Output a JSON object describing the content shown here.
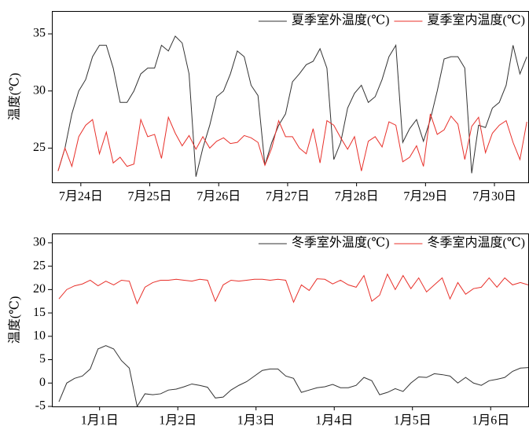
{
  "chart_data": [
    {
      "type": "line",
      "ylabel": "温度(℃)",
      "legend": "upper right",
      "x": [
        0.67,
        0.77,
        0.87,
        0.97,
        1.07,
        1.17,
        1.27,
        1.37,
        1.47,
        1.57,
        1.67,
        1.77,
        1.87,
        1.97,
        2.07,
        2.17,
        2.27,
        2.37,
        2.47,
        2.57,
        2.67,
        2.77,
        2.87,
        2.97,
        3.07,
        3.17,
        3.27,
        3.37,
        3.47,
        3.57,
        3.67,
        3.77,
        3.87,
        3.97,
        4.07,
        4.17,
        4.27,
        4.37,
        4.47,
        4.57,
        4.67,
        4.77,
        4.87,
        4.97,
        5.07,
        5.17,
        5.27,
        5.37,
        5.47,
        5.57,
        5.67,
        5.77,
        5.87,
        5.97,
        6.07,
        6.17,
        6.27,
        6.37,
        6.47,
        6.57,
        6.67,
        6.77,
        6.87,
        6.97,
        7.07,
        7.17,
        7.27,
        7.37,
        7.47
      ],
      "xlim": [
        0.58,
        7.49
      ],
      "xticks": [
        {
          "value": 1,
          "label": "7月24日"
        },
        {
          "value": 2,
          "label": "7月25日"
        },
        {
          "value": 3,
          "label": "7月26日"
        },
        {
          "value": 4,
          "label": "7月27日"
        },
        {
          "value": 5,
          "label": "7月28日"
        },
        {
          "value": 6,
          "label": "7月29日"
        },
        {
          "value": 7,
          "label": "7月30日"
        }
      ],
      "ylim": [
        22,
        37
      ],
      "yticks": [
        25,
        30,
        35
      ],
      "series": [
        {
          "name": "夏季室外温度(℃)",
          "color": "#333333",
          "values": [
            23,
            25,
            28,
            30,
            31,
            33,
            34,
            34,
            32,
            29,
            29,
            30,
            31.5,
            32,
            32,
            34,
            33.5,
            34.8,
            34.2,
            31.5,
            22.5,
            25,
            27,
            29.5,
            30,
            31.5,
            33.5,
            33,
            30.5,
            29.6,
            23.5,
            25.5,
            27,
            28,
            30.8,
            31.5,
            32.3,
            32.6,
            33.7,
            32,
            24,
            25.5,
            28.5,
            29.8,
            30.5,
            29,
            29.5,
            31,
            33,
            34,
            25.5,
            26.7,
            27.5,
            25.6,
            27.5,
            30,
            32.8,
            33,
            33,
            32,
            22.8,
            27,
            26.8,
            28.5,
            29,
            30.5,
            34,
            31.5,
            33
          ]
        },
        {
          "name": "夏季室内温度(℃)",
          "color": "#e8302a",
          "values": [
            23,
            25,
            23.4,
            26,
            27,
            27.5,
            24.5,
            26.4,
            23.7,
            24.2,
            23.4,
            23.6,
            27.5,
            26,
            26.2,
            24.1,
            27.7,
            26.3,
            25.2,
            26.1,
            24.9,
            26,
            25,
            25.6,
            25.9,
            25.4,
            25.5,
            26.1,
            25.9,
            25.5,
            23.5,
            25,
            27.4,
            26,
            26,
            25,
            24.5,
            26.7,
            23.7,
            27.4,
            27,
            25.9,
            24.9,
            26,
            23,
            25.6,
            26,
            25.1,
            27.3,
            27,
            23.8,
            24.2,
            25.2,
            23.4,
            28,
            26.2,
            26.6,
            27.8,
            27.1,
            24,
            26.9,
            27.7,
            24.6,
            26.3,
            27,
            27.4,
            25.5,
            24,
            27.3
          ]
        }
      ]
    },
    {
      "type": "line",
      "ylabel": "温度(℃)",
      "legend": "upper right",
      "x": [
        0.48,
        0.58,
        0.68,
        0.78,
        0.88,
        0.98,
        1.08,
        1.18,
        1.28,
        1.38,
        1.48,
        1.58,
        1.68,
        1.78,
        1.88,
        1.98,
        2.08,
        2.18,
        2.28,
        2.38,
        2.48,
        2.58,
        2.68,
        2.78,
        2.88,
        2.98,
        3.08,
        3.18,
        3.28,
        3.38,
        3.48,
        3.58,
        3.68,
        3.78,
        3.88,
        3.98,
        4.08,
        4.18,
        4.28,
        4.38,
        4.48,
        4.58,
        4.68,
        4.78,
        4.88,
        4.98,
        5.08,
        5.18,
        5.28,
        5.38,
        5.48,
        5.58,
        5.68,
        5.78,
        5.88,
        5.98,
        6.08,
        6.18,
        6.28,
        6.38,
        6.48
      ],
      "xlim": [
        0.39,
        6.48
      ],
      "xticks": [
        {
          "value": 1,
          "label": "1月1日"
        },
        {
          "value": 2,
          "label": "1月2日"
        },
        {
          "value": 3,
          "label": "1月3日"
        },
        {
          "value": 4,
          "label": "1月4日"
        },
        {
          "value": 5,
          "label": "1月5日"
        },
        {
          "value": 6,
          "label": "1月6日"
        }
      ],
      "ylim": [
        -5,
        32
      ],
      "yticks": [
        -5,
        0,
        5,
        10,
        15,
        20,
        25,
        30
      ],
      "series": [
        {
          "name": "冬季室外温度(℃)",
          "color": "#333333",
          "values": [
            -4,
            0,
            1,
            1.5,
            3,
            7.3,
            8,
            7.3,
            4.8,
            3.2,
            -5,
            -2.3,
            -2.5,
            -2.3,
            -1.5,
            -1.3,
            -0.8,
            -0.2,
            -0.5,
            -0.9,
            -3.2,
            -3,
            -1.5,
            -0.5,
            0.3,
            1.5,
            2.7,
            3,
            3,
            1.5,
            1,
            -2,
            -1.5,
            -1,
            -0.8,
            -0.3,
            -1,
            -1,
            -0.5,
            1.2,
            0.5,
            -2.5,
            -2,
            -1.2,
            -1.8,
            0,
            1.3,
            1.2,
            2,
            1.8,
            1.5,
            0,
            1.2,
            0,
            -0.5,
            0.5,
            0.8,
            1.2,
            2.5,
            3.2,
            3.3
          ]
        },
        {
          "name": "冬季室内温度(℃)",
          "color": "#e8302a",
          "values": [
            18,
            20,
            20.8,
            21.2,
            22,
            20.8,
            21.8,
            21,
            22,
            21.8,
            17,
            20.5,
            21.5,
            22,
            22,
            22.2,
            22,
            21.8,
            22.2,
            22,
            17.5,
            21,
            22,
            21.8,
            22,
            22.2,
            22.2,
            22,
            22.2,
            22,
            17.3,
            21,
            19.8,
            22.3,
            22.2,
            21.2,
            22,
            21,
            20.5,
            23,
            17.5,
            18.8,
            23.3,
            20,
            23,
            20.2,
            22.5,
            19.5,
            21,
            22.5,
            18,
            21.5,
            19,
            20.2,
            20.5,
            22.5,
            20.5,
            22.5,
            21,
            21.5,
            21
          ]
        }
      ]
    }
  ]
}
